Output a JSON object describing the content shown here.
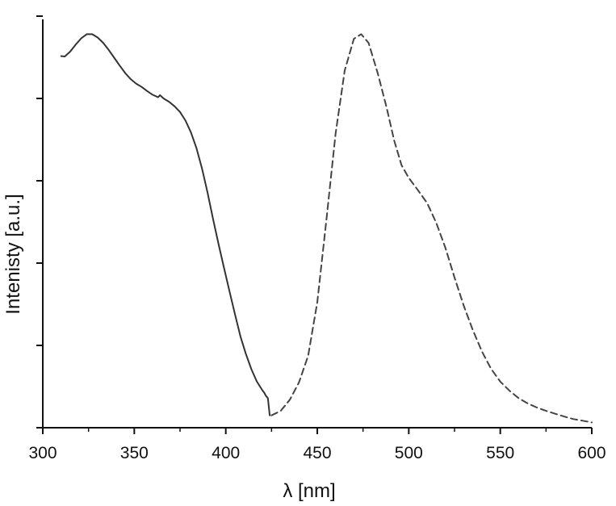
{
  "chart_data": {
    "type": "line",
    "title": "",
    "xlabel": "λ [nm]",
    "ylabel": "Intenisty [a.u.]",
    "xlim": [
      300,
      600
    ],
    "ylim": [
      0,
      1.0
    ],
    "x_ticks": [
      300,
      350,
      400,
      450,
      500,
      550,
      600
    ],
    "y_ticks_labeled": false,
    "grid": false,
    "legend": "none",
    "colors": {
      "excitation": "#333333",
      "emission": "#444444",
      "axis": "#111111"
    },
    "series": [
      {
        "style": "solid",
        "points": [
          [
            310,
            0.903
          ],
          [
            312,
            0.902
          ],
          [
            315,
            0.914
          ],
          [
            318,
            0.931
          ],
          [
            321,
            0.946
          ],
          [
            324,
            0.956
          ],
          [
            327,
            0.956
          ],
          [
            330,
            0.948
          ],
          [
            333,
            0.935
          ],
          [
            336,
            0.918
          ],
          [
            339,
            0.899
          ],
          [
            342,
            0.88
          ],
          [
            345,
            0.862
          ],
          [
            348,
            0.847
          ],
          [
            351,
            0.836
          ],
          [
            354,
            0.828
          ],
          [
            357,
            0.818
          ],
          [
            360,
            0.809
          ],
          [
            363,
            0.803
          ],
          [
            364,
            0.808
          ],
          [
            366,
            0.8
          ],
          [
            369,
            0.792
          ],
          [
            372,
            0.781
          ],
          [
            375,
            0.767
          ],
          [
            378,
            0.746
          ],
          [
            381,
            0.717
          ],
          [
            384,
            0.679
          ],
          [
            387,
            0.63
          ],
          [
            390,
            0.572
          ],
          [
            393,
            0.508
          ],
          [
            396,
            0.447
          ],
          [
            399,
            0.389
          ],
          [
            402,
            0.332
          ],
          [
            405,
            0.276
          ],
          [
            408,
            0.222
          ],
          [
            411,
            0.179
          ],
          [
            414,
            0.142
          ],
          [
            417,
            0.112
          ],
          [
            420,
            0.091
          ],
          [
            421,
            0.085
          ],
          [
            422,
            0.077
          ],
          [
            423,
            0.072
          ],
          [
            424,
            0.03
          ]
        ]
      },
      {
        "style": "dashed",
        "points": [
          [
            425,
            0.03
          ],
          [
            430,
            0.041
          ],
          [
            435,
            0.068
          ],
          [
            440,
            0.11
          ],
          [
            445,
            0.175
          ],
          [
            450,
            0.305
          ],
          [
            455,
            0.505
          ],
          [
            460,
            0.715
          ],
          [
            465,
            0.868
          ],
          [
            470,
            0.945
          ],
          [
            474,
            0.956
          ],
          [
            478,
            0.935
          ],
          [
            483,
            0.862
          ],
          [
            488,
            0.776
          ],
          [
            492,
            0.698
          ],
          [
            496,
            0.638
          ],
          [
            500,
            0.607
          ],
          [
            505,
            0.577
          ],
          [
            510,
            0.546
          ],
          [
            515,
            0.498
          ],
          [
            520,
            0.437
          ],
          [
            525,
            0.365
          ],
          [
            530,
            0.297
          ],
          [
            535,
            0.237
          ],
          [
            540,
            0.185
          ],
          [
            545,
            0.143
          ],
          [
            550,
            0.112
          ],
          [
            555,
            0.09
          ],
          [
            560,
            0.072
          ],
          [
            565,
            0.059
          ],
          [
            570,
            0.049
          ],
          [
            575,
            0.041
          ],
          [
            580,
            0.034
          ],
          [
            585,
            0.027
          ],
          [
            590,
            0.021
          ],
          [
            595,
            0.017
          ],
          [
            600,
            0.013
          ]
        ]
      }
    ]
  }
}
